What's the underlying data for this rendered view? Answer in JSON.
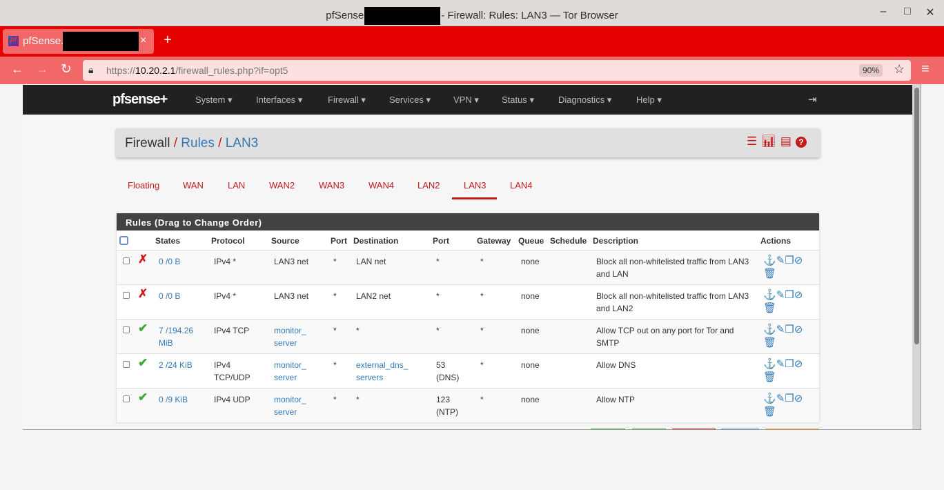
{
  "window": {
    "title_prefix": "pfSense",
    "title_suffix": "- Firewall: Rules: LAN3 — Tor Browser",
    "minimize": "–",
    "maximize": "□",
    "close": "✕"
  },
  "browser": {
    "tab_title": "pfSense.",
    "tab_close": "×",
    "new_tab": "+",
    "url_prefix": "https://",
    "url_host": "10.20.2.1",
    "url_path": "/firewall_rules.php?if=opt5",
    "zoom": "90%",
    "back": "←",
    "forward": "→",
    "reload": "↻",
    "star": "☆",
    "menu": "≡"
  },
  "pfnav": {
    "logo": "pfsense+",
    "items": [
      "System ▾",
      "Interfaces ▾",
      "Firewall ▾",
      "Services ▾",
      "VPN ▾",
      "Status ▾",
      "Diagnostics ▾",
      "Help ▾"
    ],
    "logout_icon": "logout-icon"
  },
  "breadcrumb": {
    "root": "Firewall",
    "sep": "/",
    "rules": "Rules",
    "current": "LAN3"
  },
  "iface_tabs": [
    "Floating",
    "WAN",
    "LAN",
    "WAN2",
    "WAN3",
    "WAN4",
    "LAN2",
    "LAN3",
    "LAN4"
  ],
  "active_tab": "LAN3",
  "panel": {
    "title": "Rules (Drag to Change Order)",
    "headers": [
      "States",
      "Protocol",
      "Source",
      "Port",
      "Destination",
      "Port",
      "Gateway",
      "Queue",
      "Schedule",
      "Description",
      "Actions"
    ],
    "rows": [
      {
        "action": "block",
        "states": "0 /0 B",
        "protocol": "IPv4 *",
        "source": "LAN3 net",
        "source_link": false,
        "sport": "*",
        "destination": "LAN net",
        "dest_link": false,
        "dport": "*",
        "gateway": "*",
        "queue": "none",
        "schedule": "",
        "description": "Block all non-whitelisted traffic from LAN3 and LAN"
      },
      {
        "action": "block",
        "states": "0 /0 B",
        "protocol": "IPv4 *",
        "source": "LAN3 net",
        "source_link": false,
        "sport": "*",
        "destination": "LAN2 net",
        "dest_link": false,
        "dport": "*",
        "gateway": "*",
        "queue": "none",
        "schedule": "",
        "description": "Block all non-whitelisted traffic from LAN3 and LAN2"
      },
      {
        "action": "pass",
        "states": "7 /194.26 MiB",
        "protocol": "IPv4 TCP",
        "source": "monitor_ server",
        "source_link": true,
        "sport": "*",
        "destination": "*",
        "dest_link": false,
        "dport": "*",
        "gateway": "*",
        "queue": "none",
        "schedule": "",
        "description": "Allow TCP out on any port for Tor and SMTP"
      },
      {
        "action": "pass",
        "states": "2 /24 KiB",
        "protocol": "IPv4 TCP/UDP",
        "source": "monitor_ server",
        "source_link": true,
        "sport": "*",
        "destination": "external_dns_ servers",
        "dest_link": true,
        "dport": "53 (DNS)",
        "gateway": "*",
        "queue": "none",
        "schedule": "",
        "description": "Allow DNS"
      },
      {
        "action": "pass",
        "states": "0 /9 KiB",
        "protocol": "IPv4 UDP",
        "source": "monitor_ server",
        "source_link": true,
        "sport": "*",
        "destination": "*",
        "dest_link": false,
        "dport": "123 (NTP)",
        "gateway": "*",
        "queue": "none",
        "schedule": "",
        "description": "Allow NTP"
      }
    ]
  },
  "colors": {
    "accent": "#c41a1a",
    "link": "#337ab7",
    "pass": "#3dab3d",
    "block": "#d01a1a",
    "tor_red": "#e60000"
  }
}
